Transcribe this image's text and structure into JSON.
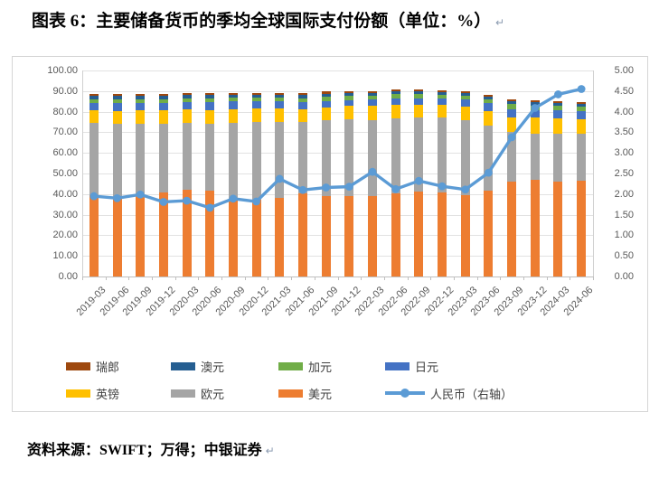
{
  "title": "图表 6：主要储备货币的季均全球国际支付份额（单位：%）",
  "source_note": "资料来源：SWIFT；万得；中银证券",
  "paragraph_mark": "↵",
  "colors": {
    "usd": "#ED7D31",
    "eur": "#A5A5A5",
    "gbp": "#FFC000",
    "jpy": "#4472C4",
    "cad": "#70AD47",
    "aud": "#255E91",
    "chf": "#9E480E",
    "rmb_line": "#5B9BD5",
    "gridline": "#E2E2E2",
    "axis_text": "#595959"
  },
  "chart_data": {
    "type": "bar",
    "subtype": "stacked-bar-with-line",
    "title": "图表 6：主要储备货币的季均全球国际支付份额（单位：%）",
    "xlabel": "",
    "ylabel_left": "",
    "ylabel_right": "",
    "grid": true,
    "legend_position": "bottom",
    "left_axis": {
      "min": 0,
      "max": 100,
      "step": 10,
      "labels": [
        "100.00",
        "90.00",
        "80.00",
        "70.00",
        "60.00",
        "50.00",
        "40.00",
        "30.00",
        "20.00",
        "10.00",
        "0.00"
      ]
    },
    "right_axis": {
      "min": 0,
      "max": 5,
      "step": 0.5,
      "labels": [
        "5.00",
        "4.50",
        "4.00",
        "3.50",
        "3.00",
        "2.50",
        "2.00",
        "1.50",
        "1.00",
        "0.50",
        "0.00"
      ]
    },
    "categories": [
      "2019-03",
      "2019-06",
      "2019-09",
      "2019-12",
      "2020-03",
      "2020-06",
      "2020-09",
      "2020-12",
      "2021-03",
      "2021-06",
      "2021-09",
      "2021-12",
      "2022-03",
      "2022-06",
      "2022-09",
      "2022-12",
      "2023-03",
      "2023-06",
      "2023-09",
      "2023-12",
      "2024-03",
      "2024-06"
    ],
    "series": [
      {
        "name": "美元",
        "color": "#ED7D31",
        "axis": "left",
        "values": [
          39.5,
          38.8,
          39.6,
          40.8,
          41.9,
          41.6,
          37.9,
          37.3,
          38.1,
          40.2,
          39.2,
          39.0,
          39.1,
          40.5,
          41.4,
          40.9,
          39.5,
          41.5,
          46.1,
          46.9,
          46.2,
          46.5
        ]
      },
      {
        "name": "欧元",
        "color": "#A5A5A5",
        "axis": "left",
        "values": [
          34.9,
          35.2,
          34.5,
          33.2,
          32.8,
          32.7,
          36.6,
          37.5,
          37.1,
          34.6,
          36.5,
          37.4,
          36.9,
          36.3,
          35.6,
          36.1,
          36.5,
          31.9,
          24.1,
          22.5,
          23.0,
          22.7
        ]
      },
      {
        "name": "英镑",
        "color": "#FFC000",
        "axis": "left",
        "values": [
          6.2,
          6.4,
          6.4,
          6.5,
          6.6,
          6.6,
          6.8,
          6.8,
          6.4,
          6.5,
          6.5,
          6.3,
          6.7,
          6.5,
          6.2,
          6.4,
          6.6,
          6.7,
          7.2,
          7.8,
          7.6,
          7.3
        ]
      },
      {
        "name": "日元",
        "color": "#4472C4",
        "axis": "left",
        "values": [
          3.6,
          3.6,
          3.5,
          3.5,
          3.5,
          3.7,
          3.6,
          3.5,
          3.4,
          3.3,
          3.1,
          3.0,
          3.2,
          3.2,
          3.2,
          3.1,
          3.3,
          3.9,
          3.9,
          3.5,
          3.7,
          3.8
        ]
      },
      {
        "name": "加元",
        "color": "#70AD47",
        "axis": "left",
        "values": [
          1.9,
          1.9,
          1.9,
          1.9,
          1.8,
          1.9,
          1.8,
          1.8,
          1.9,
          2.0,
          2.1,
          2.2,
          1.9,
          2.0,
          2.2,
          1.8,
          1.9,
          2.0,
          2.3,
          2.4,
          2.2,
          2.1
        ]
      },
      {
        "name": "澳元",
        "color": "#255E91",
        "axis": "left",
        "values": [
          1.6,
          1.7,
          1.8,
          1.7,
          1.6,
          1.5,
          1.4,
          1.3,
          1.4,
          1.5,
          1.4,
          1.3,
          1.4,
          1.5,
          1.5,
          1.3,
          1.2,
          1.2,
          1.5,
          1.7,
          1.5,
          1.4
        ]
      },
      {
        "name": "瑞郎",
        "color": "#9E480E",
        "axis": "left",
        "values": [
          1.0,
          1.0,
          1.0,
          1.0,
          1.0,
          1.0,
          0.9,
          0.9,
          0.9,
          0.9,
          0.9,
          0.8,
          0.7,
          0.7,
          0.6,
          0.6,
          0.7,
          0.8,
          0.8,
          0.9,
          0.8,
          0.7
        ]
      }
    ],
    "line_series": {
      "name": "人民币（右轴）",
      "color": "#5B9BD5",
      "axis": "right",
      "values": [
        1.95,
        1.9,
        1.99,
        1.81,
        1.84,
        1.67,
        1.89,
        1.82,
        2.37,
        2.1,
        2.16,
        2.18,
        2.54,
        2.12,
        2.32,
        2.19,
        2.11,
        2.52,
        3.38,
        4.09,
        4.42,
        4.55
      ]
    },
    "legend": {
      "rows": [
        [
          {
            "label": "瑞郎",
            "type": "swatch",
            "color": "#9E480E"
          },
          {
            "label": "澳元",
            "type": "swatch",
            "color": "#255E91"
          },
          {
            "label": "加元",
            "type": "swatch",
            "color": "#70AD47"
          },
          {
            "label": "日元",
            "type": "swatch",
            "color": "#4472C4"
          }
        ],
        [
          {
            "label": "英镑",
            "type": "swatch",
            "color": "#FFC000"
          },
          {
            "label": "欧元",
            "type": "swatch",
            "color": "#A5A5A5"
          },
          {
            "label": "美元",
            "type": "swatch",
            "color": "#ED7D31"
          },
          {
            "label": "人民币（右轴）",
            "type": "line",
            "color": "#5B9BD5"
          }
        ]
      ]
    }
  }
}
